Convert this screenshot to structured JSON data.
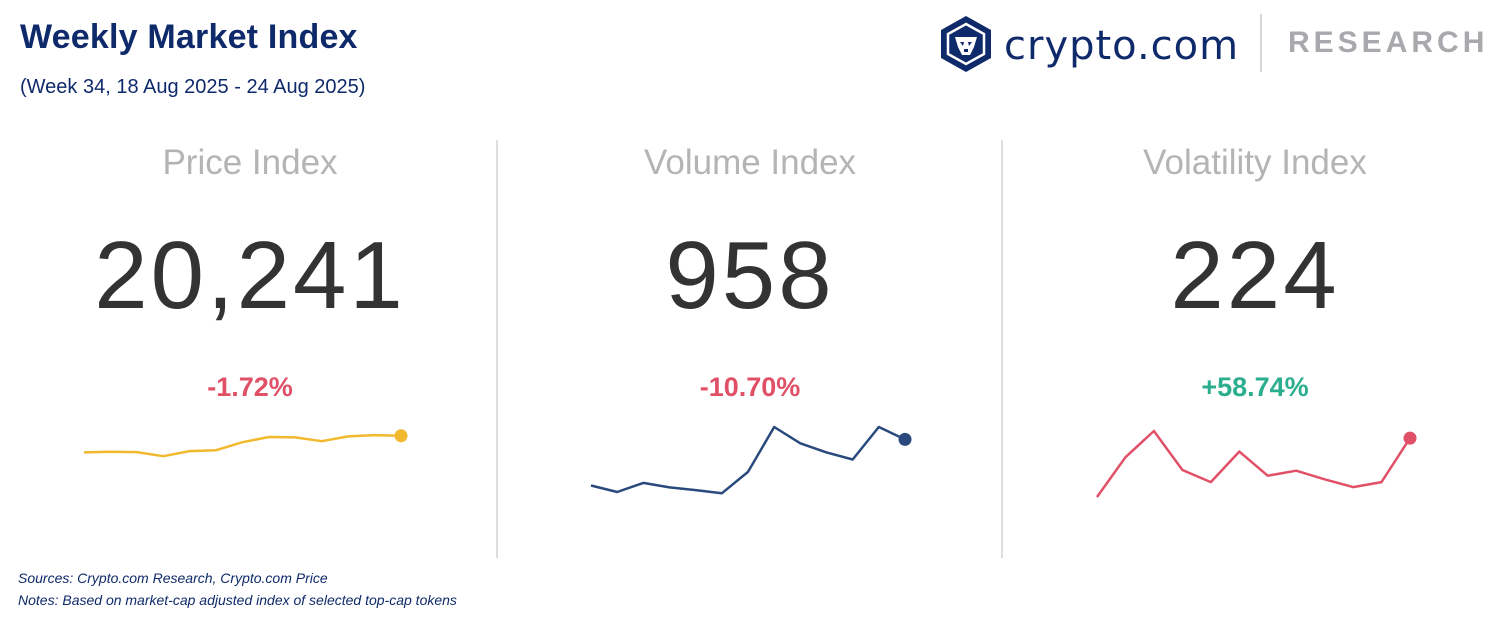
{
  "header": {
    "title": "Weekly Market Index",
    "subtitle": "(Week 34, 18 Aug 2025 - 24 Aug 2025)"
  },
  "brand": {
    "name": "crypto.com",
    "section": "RESEARCH",
    "logo_icon": "crypto-com-lion-logo"
  },
  "panels": [
    {
      "title": "Price Index",
      "value": "20,241",
      "change": "-1.72%"
    },
    {
      "title": "Volume Index",
      "value": "958",
      "change": "-10.70%"
    },
    {
      "title": "Volatility Index",
      "value": "224",
      "change": "+58.74%"
    }
  ],
  "colors": {
    "navy": "#0f2a6b",
    "negative": "#e05067",
    "positive": "#2bae8e",
    "price_line": "#f2b92f",
    "volume_line": "#2a4a7d",
    "volatility_line": "#e05067"
  },
  "chart_data": [
    {
      "type": "line",
      "title": "Price Index",
      "series": [
        {
          "values": [
            0.3,
            0.32,
            0.31,
            0.18,
            0.34,
            0.37,
            0.62,
            0.78,
            0.77,
            0.65,
            0.8,
            0.84,
            0.82
          ]
        }
      ]
    },
    {
      "type": "line",
      "title": "Volume Index",
      "series": [
        {
          "values": [
            0.1,
            0.0,
            0.14,
            0.07,
            0.03,
            -0.02,
            0.31,
            1.0,
            0.75,
            0.61,
            0.5,
            1.0,
            0.81
          ]
        }
      ]
    },
    {
      "type": "line",
      "title": "Volatility Index",
      "series": [
        {
          "values": [
            0.0,
            0.56,
            0.93,
            0.38,
            0.21,
            0.64,
            0.3,
            0.37,
            0.25,
            0.14,
            0.21,
            0.83
          ]
        }
      ]
    }
  ],
  "footer": {
    "sources": "Sources: Crypto.com Research,  Crypto.com Price",
    "notes": "Notes: Based on market-cap adjusted index of selected top-cap tokens"
  }
}
